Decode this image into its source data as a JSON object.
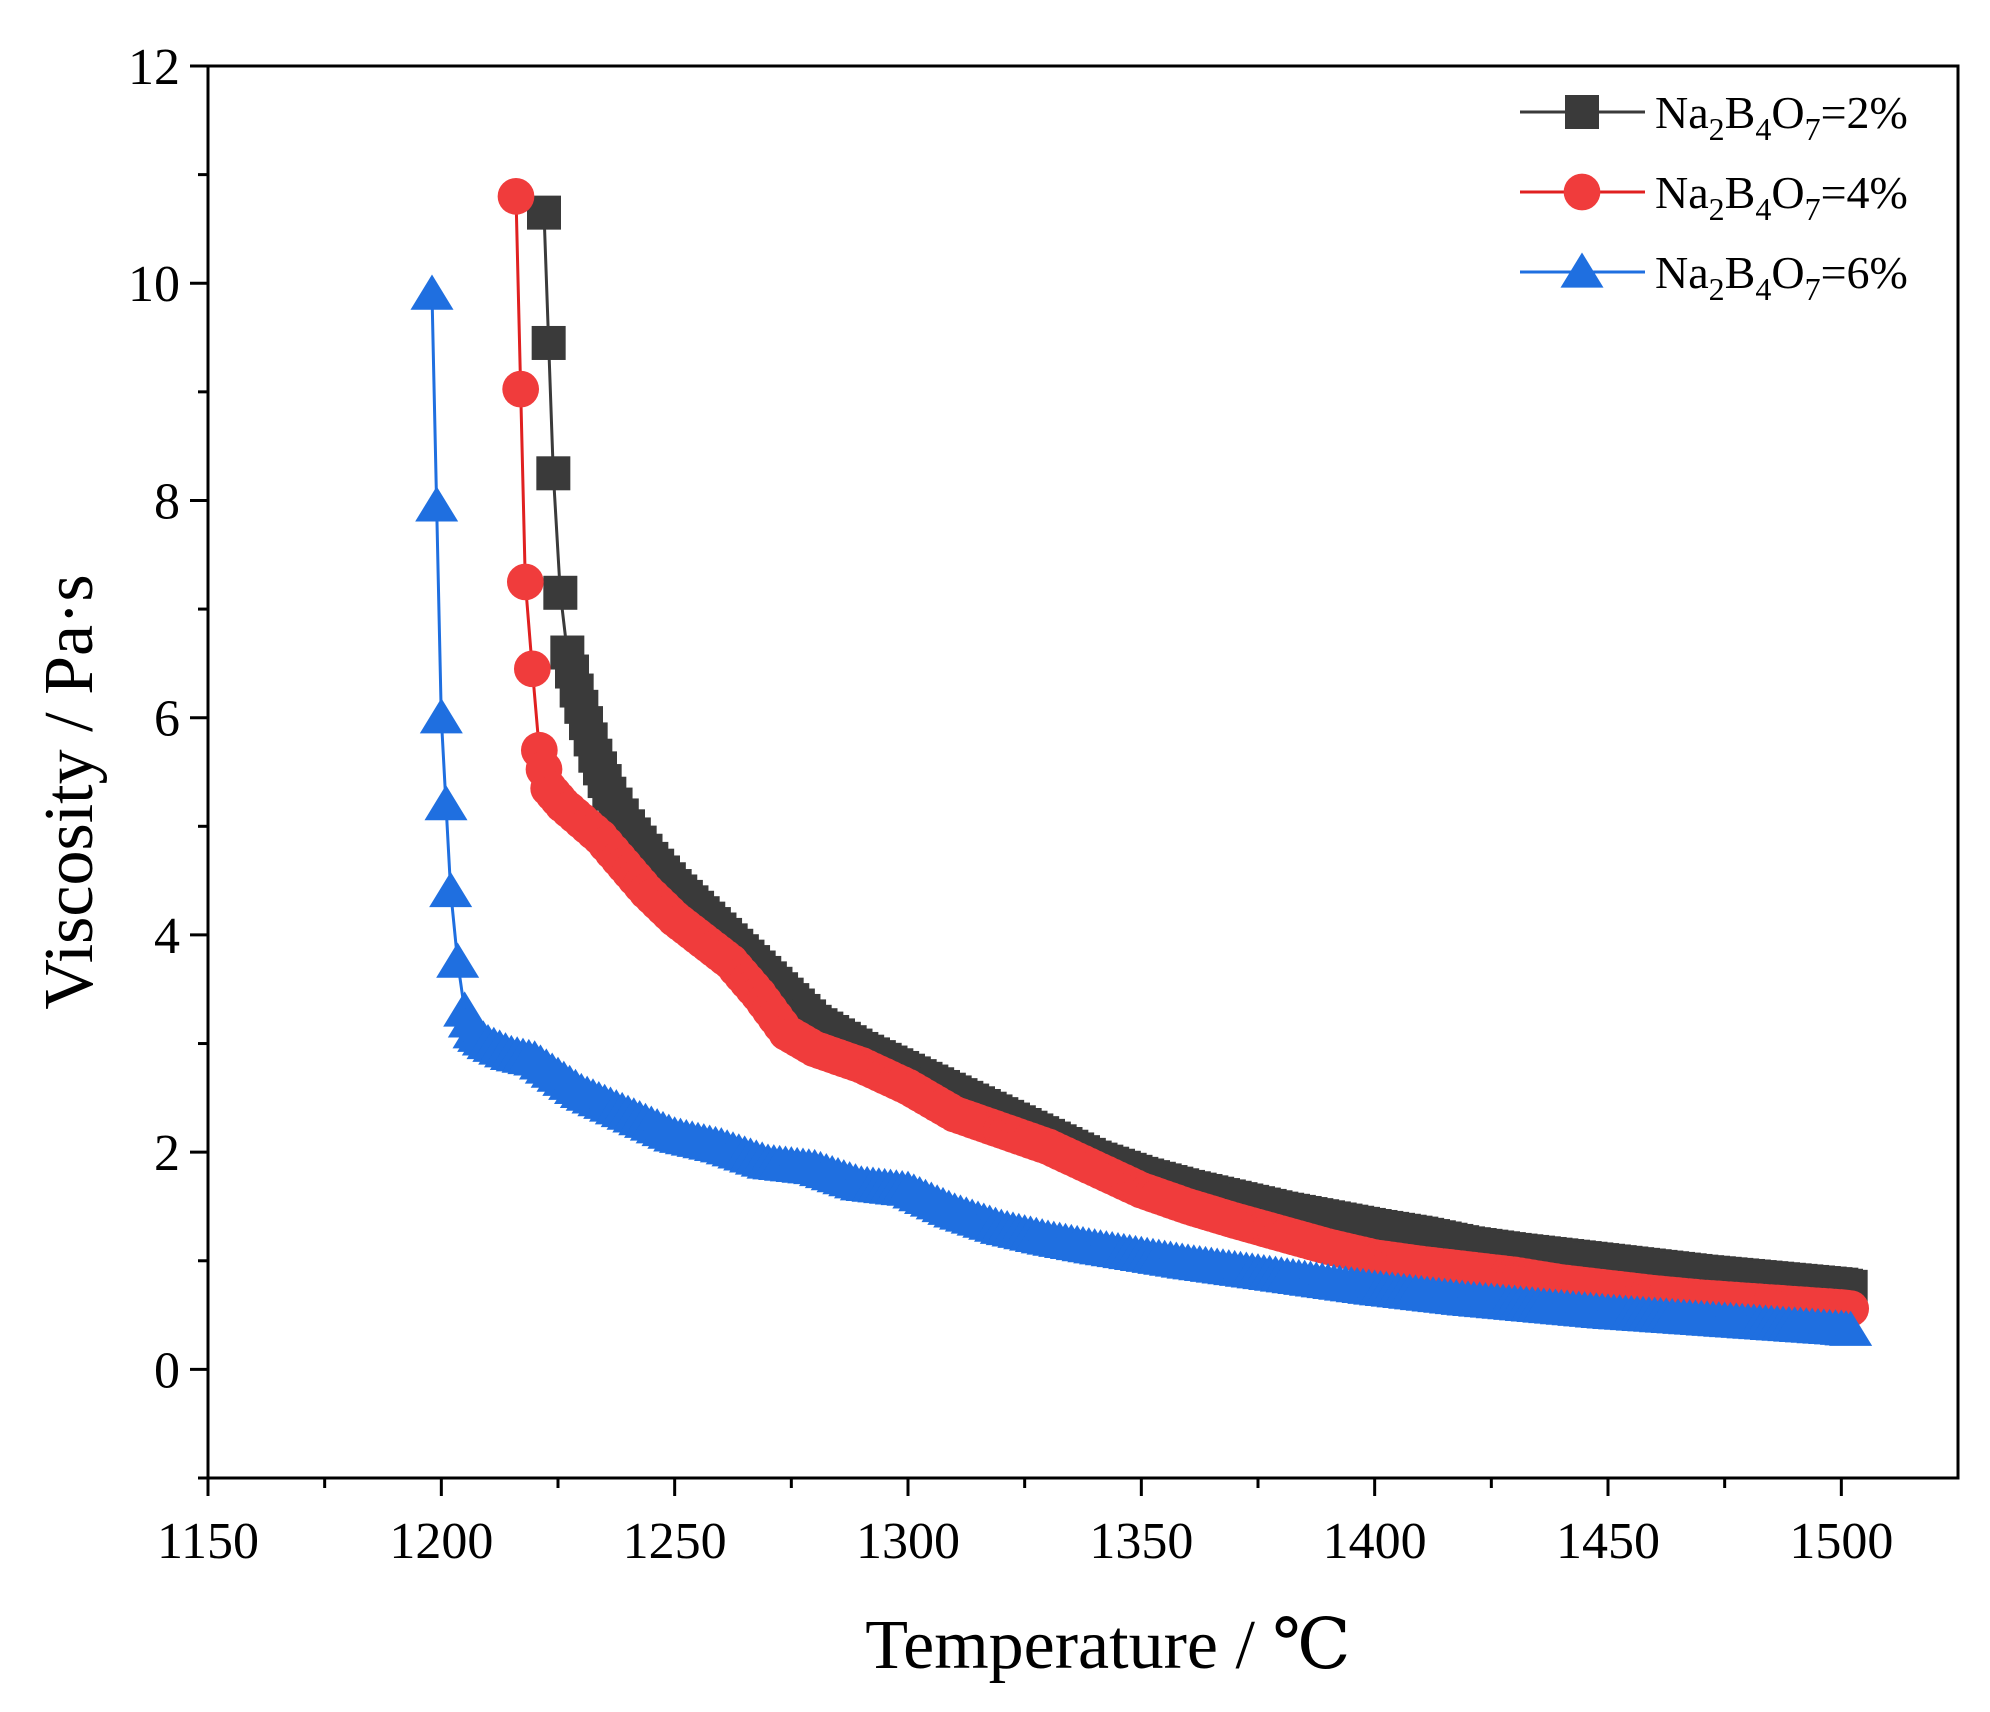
{
  "chart_data": {
    "type": "scatter",
    "title": "",
    "xlabel": "Temperature / ℃",
    "ylabel": "Viscosity / Pa·s",
    "xlim": [
      1150,
      1525
    ],
    "ylim": [
      -1,
      12
    ],
    "xticks": [
      1150,
      1200,
      1250,
      1300,
      1350,
      1400,
      1450,
      1500
    ],
    "yticks": [
      0,
      2,
      4,
      6,
      8,
      10,
      12
    ],
    "xtick_labels": [
      "1150",
      "1200",
      "1250",
      "1300",
      "1350",
      "1400",
      "1450",
      "1500"
    ],
    "ytick_labels": [
      "0",
      "2",
      "4",
      "6",
      "8",
      "10",
      "12"
    ],
    "grid": false,
    "legend_position": "top-right",
    "series": [
      {
        "name": "Na2B4O7=2%",
        "legend": {
          "prefix": "Na",
          "sub1": "2",
          "mid1": "B",
          "sub2": "4",
          "mid2": "O",
          "sub3": "7",
          "suffix": "=2%"
        },
        "marker": "square",
        "color": "#3a3a3a",
        "line_color": "#3a3a3a",
        "anchors": [
          [
            1222,
            10.65
          ],
          [
            1224,
            8.25
          ],
          [
            1225.5,
            7.15
          ],
          [
            1227,
            6.6
          ],
          [
            1229,
            6.25
          ],
          [
            1231,
            5.95
          ],
          [
            1233,
            5.65
          ],
          [
            1236,
            5.3
          ],
          [
            1240,
            5.0
          ],
          [
            1245,
            4.7
          ],
          [
            1250,
            4.45
          ],
          [
            1256,
            4.2
          ],
          [
            1262,
            3.95
          ],
          [
            1268,
            3.7
          ],
          [
            1274,
            3.45
          ],
          [
            1280,
            3.2
          ],
          [
            1290,
            2.95
          ],
          [
            1300,
            2.75
          ],
          [
            1310,
            2.55
          ],
          [
            1320,
            2.35
          ],
          [
            1330,
            2.15
          ],
          [
            1340,
            1.95
          ],
          [
            1350,
            1.8
          ],
          [
            1360,
            1.68
          ],
          [
            1370,
            1.58
          ],
          [
            1380,
            1.48
          ],
          [
            1390,
            1.4
          ],
          [
            1400,
            1.32
          ],
          [
            1410,
            1.25
          ],
          [
            1420,
            1.16
          ],
          [
            1430,
            1.1
          ],
          [
            1440,
            1.05
          ],
          [
            1450,
            1.0
          ],
          [
            1460,
            0.95
          ],
          [
            1470,
            0.9
          ],
          [
            1480,
            0.86
          ],
          [
            1490,
            0.82
          ],
          [
            1500,
            0.78
          ],
          [
            1502,
            0.76
          ]
        ]
      },
      {
        "name": "Na2B4O7=4%",
        "legend": {
          "prefix": "Na",
          "sub1": "2",
          "mid1": "B",
          "sub2": "4",
          "mid2": "O",
          "sub3": "7",
          "suffix": "=4%"
        },
        "marker": "circle",
        "color": "#f03c3c",
        "line_color": "#e02020",
        "anchors": [
          [
            1216,
            10.8
          ],
          [
            1218,
            7.25
          ],
          [
            1219.5,
            6.45
          ],
          [
            1221,
            5.7
          ],
          [
            1223,
            5.35
          ],
          [
            1226,
            5.2
          ],
          [
            1230,
            5.05
          ],
          [
            1234,
            4.9
          ],
          [
            1238,
            4.7
          ],
          [
            1244,
            4.4
          ],
          [
            1250,
            4.15
          ],
          [
            1256,
            3.95
          ],
          [
            1262,
            3.75
          ],
          [
            1268,
            3.45
          ],
          [
            1274,
            3.1
          ],
          [
            1280,
            2.95
          ],
          [
            1290,
            2.8
          ],
          [
            1300,
            2.6
          ],
          [
            1310,
            2.35
          ],
          [
            1320,
            2.2
          ],
          [
            1330,
            2.05
          ],
          [
            1340,
            1.85
          ],
          [
            1350,
            1.65
          ],
          [
            1360,
            1.5
          ],
          [
            1370,
            1.37
          ],
          [
            1380,
            1.25
          ],
          [
            1390,
            1.13
          ],
          [
            1400,
            1.03
          ],
          [
            1410,
            0.97
          ],
          [
            1420,
            0.92
          ],
          [
            1430,
            0.87
          ],
          [
            1440,
            0.8
          ],
          [
            1450,
            0.75
          ],
          [
            1460,
            0.7
          ],
          [
            1470,
            0.66
          ],
          [
            1480,
            0.63
          ],
          [
            1490,
            0.6
          ],
          [
            1500,
            0.57
          ],
          [
            1502,
            0.56
          ]
        ]
      },
      {
        "name": "Na2B4O7=6%",
        "legend": {
          "prefix": "Na",
          "sub1": "2",
          "mid1": "B",
          "sub2": "4",
          "mid2": "O",
          "sub3": "7",
          "suffix": "=6%"
        },
        "marker": "triangle",
        "color": "#1f6fe0",
        "line_color": "#1f6fe0",
        "anchors": [
          [
            1198,
            9.9
          ],
          [
            1200,
            6.0
          ],
          [
            1202,
            4.4
          ],
          [
            1203.5,
            3.75
          ],
          [
            1205,
            3.3
          ],
          [
            1207,
            3.1
          ],
          [
            1210,
            3.0
          ],
          [
            1215,
            2.9
          ],
          [
            1220,
            2.85
          ],
          [
            1225,
            2.7
          ],
          [
            1230,
            2.55
          ],
          [
            1240,
            2.35
          ],
          [
            1250,
            2.15
          ],
          [
            1260,
            2.05
          ],
          [
            1270,
            1.9
          ],
          [
            1280,
            1.85
          ],
          [
            1290,
            1.7
          ],
          [
            1300,
            1.65
          ],
          [
            1310,
            1.45
          ],
          [
            1320,
            1.3
          ],
          [
            1330,
            1.2
          ],
          [
            1340,
            1.12
          ],
          [
            1350,
            1.05
          ],
          [
            1360,
            0.98
          ],
          [
            1370,
            0.92
          ],
          [
            1380,
            0.86
          ],
          [
            1390,
            0.8
          ],
          [
            1400,
            0.74
          ],
          [
            1410,
            0.69
          ],
          [
            1420,
            0.64
          ],
          [
            1430,
            0.6
          ],
          [
            1440,
            0.56
          ],
          [
            1450,
            0.52
          ],
          [
            1460,
            0.49
          ],
          [
            1470,
            0.46
          ],
          [
            1480,
            0.43
          ],
          [
            1490,
            0.4
          ],
          [
            1500,
            0.37
          ],
          [
            1502,
            0.36
          ]
        ]
      }
    ]
  }
}
